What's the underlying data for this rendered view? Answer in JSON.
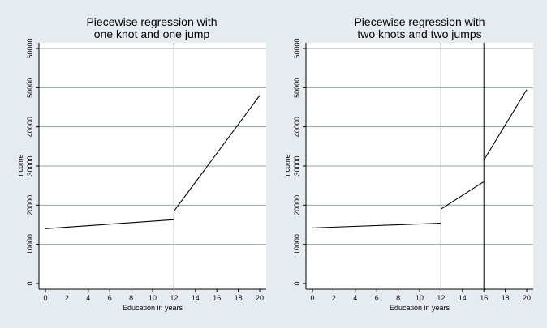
{
  "chart_data": [
    {
      "type": "line",
      "title": [
        "Piecewise regression with",
        "one knot and one jump"
      ],
      "xlabel": "Education in years",
      "ylabel": "income",
      "xlim": [
        0,
        20
      ],
      "ylim": [
        0,
        60000
      ],
      "xticks": [
        0,
        2,
        4,
        6,
        8,
        10,
        12,
        14,
        16,
        18,
        20
      ],
      "xtick_labels": [
        "0",
        "2",
        "4",
        "6",
        "8",
        "10",
        "12",
        "14",
        "16",
        "18",
        "20"
      ],
      "yticks": [
        0,
        10000,
        20000,
        30000,
        40000,
        50000,
        60000
      ],
      "ytick_labels": [
        "0",
        "10000",
        "20000",
        "30000",
        "40000",
        "50000",
        "60000"
      ],
      "grid": true,
      "knots": [
        12
      ],
      "segments": [
        [
          [
            0,
            14000
          ],
          [
            12,
            16300
          ]
        ],
        [
          [
            12,
            18500
          ],
          [
            20,
            48000
          ]
        ]
      ]
    },
    {
      "type": "line",
      "title": [
        "Piecewise regression with",
        "two knots and two jumps"
      ],
      "xlabel": "Education in years",
      "ylabel": "income",
      "xlim": [
        0,
        20
      ],
      "ylim": [
        0,
        60000
      ],
      "xticks": [
        0,
        2,
        4,
        6,
        8,
        10,
        12,
        14,
        16,
        18,
        20
      ],
      "xtick_labels": [
        "0",
        "2",
        "4",
        "6",
        "8",
        "10",
        "12",
        "14",
        "16",
        "18",
        "20"
      ],
      "yticks": [
        0,
        10000,
        20000,
        30000,
        40000,
        50000,
        60000
      ],
      "ytick_labels": [
        "0",
        "10000",
        "20000",
        "30000",
        "40000",
        "50000",
        "60000"
      ],
      "grid": true,
      "knots": [
        12,
        16
      ],
      "segments": [
        [
          [
            0,
            14200
          ],
          [
            12,
            15400
          ]
        ],
        [
          [
            12,
            19000
          ],
          [
            16,
            26000
          ]
        ],
        [
          [
            16,
            31500
          ],
          [
            20,
            49500
          ]
        ]
      ]
    }
  ]
}
